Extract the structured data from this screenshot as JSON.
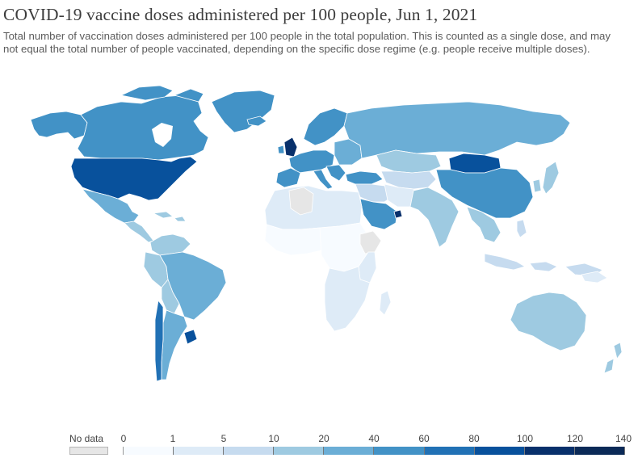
{
  "header": {
    "title": "COVID-19 vaccine doses administered per 100 people, Jun 1, 2021",
    "subtitle": "Total number of vaccination doses administered per 100 people in the total population. This is counted as a single dose, and may not equal the total number of people vaccinated, depending on the specific dose regime (e.g. people receive multiple doses)."
  },
  "legend": {
    "no_data_label": "No data",
    "no_data_color": "#e6e6e6",
    "ticks": [
      "0",
      "1",
      "5",
      "10",
      "20",
      "40",
      "60",
      "80",
      "100",
      "120",
      "140"
    ],
    "bin_colors": [
      "#f7fbff",
      "#deebf7",
      "#c6dbef",
      "#9ecae1",
      "#6baed6",
      "#4292c6",
      "#2171b5",
      "#08519c",
      "#08306b",
      "#0b2a57"
    ]
  },
  "map": {
    "colors": {
      "ocean": "#ffffff",
      "no_data": "#e6e6e6",
      "border": "#ffffff"
    }
  }
}
